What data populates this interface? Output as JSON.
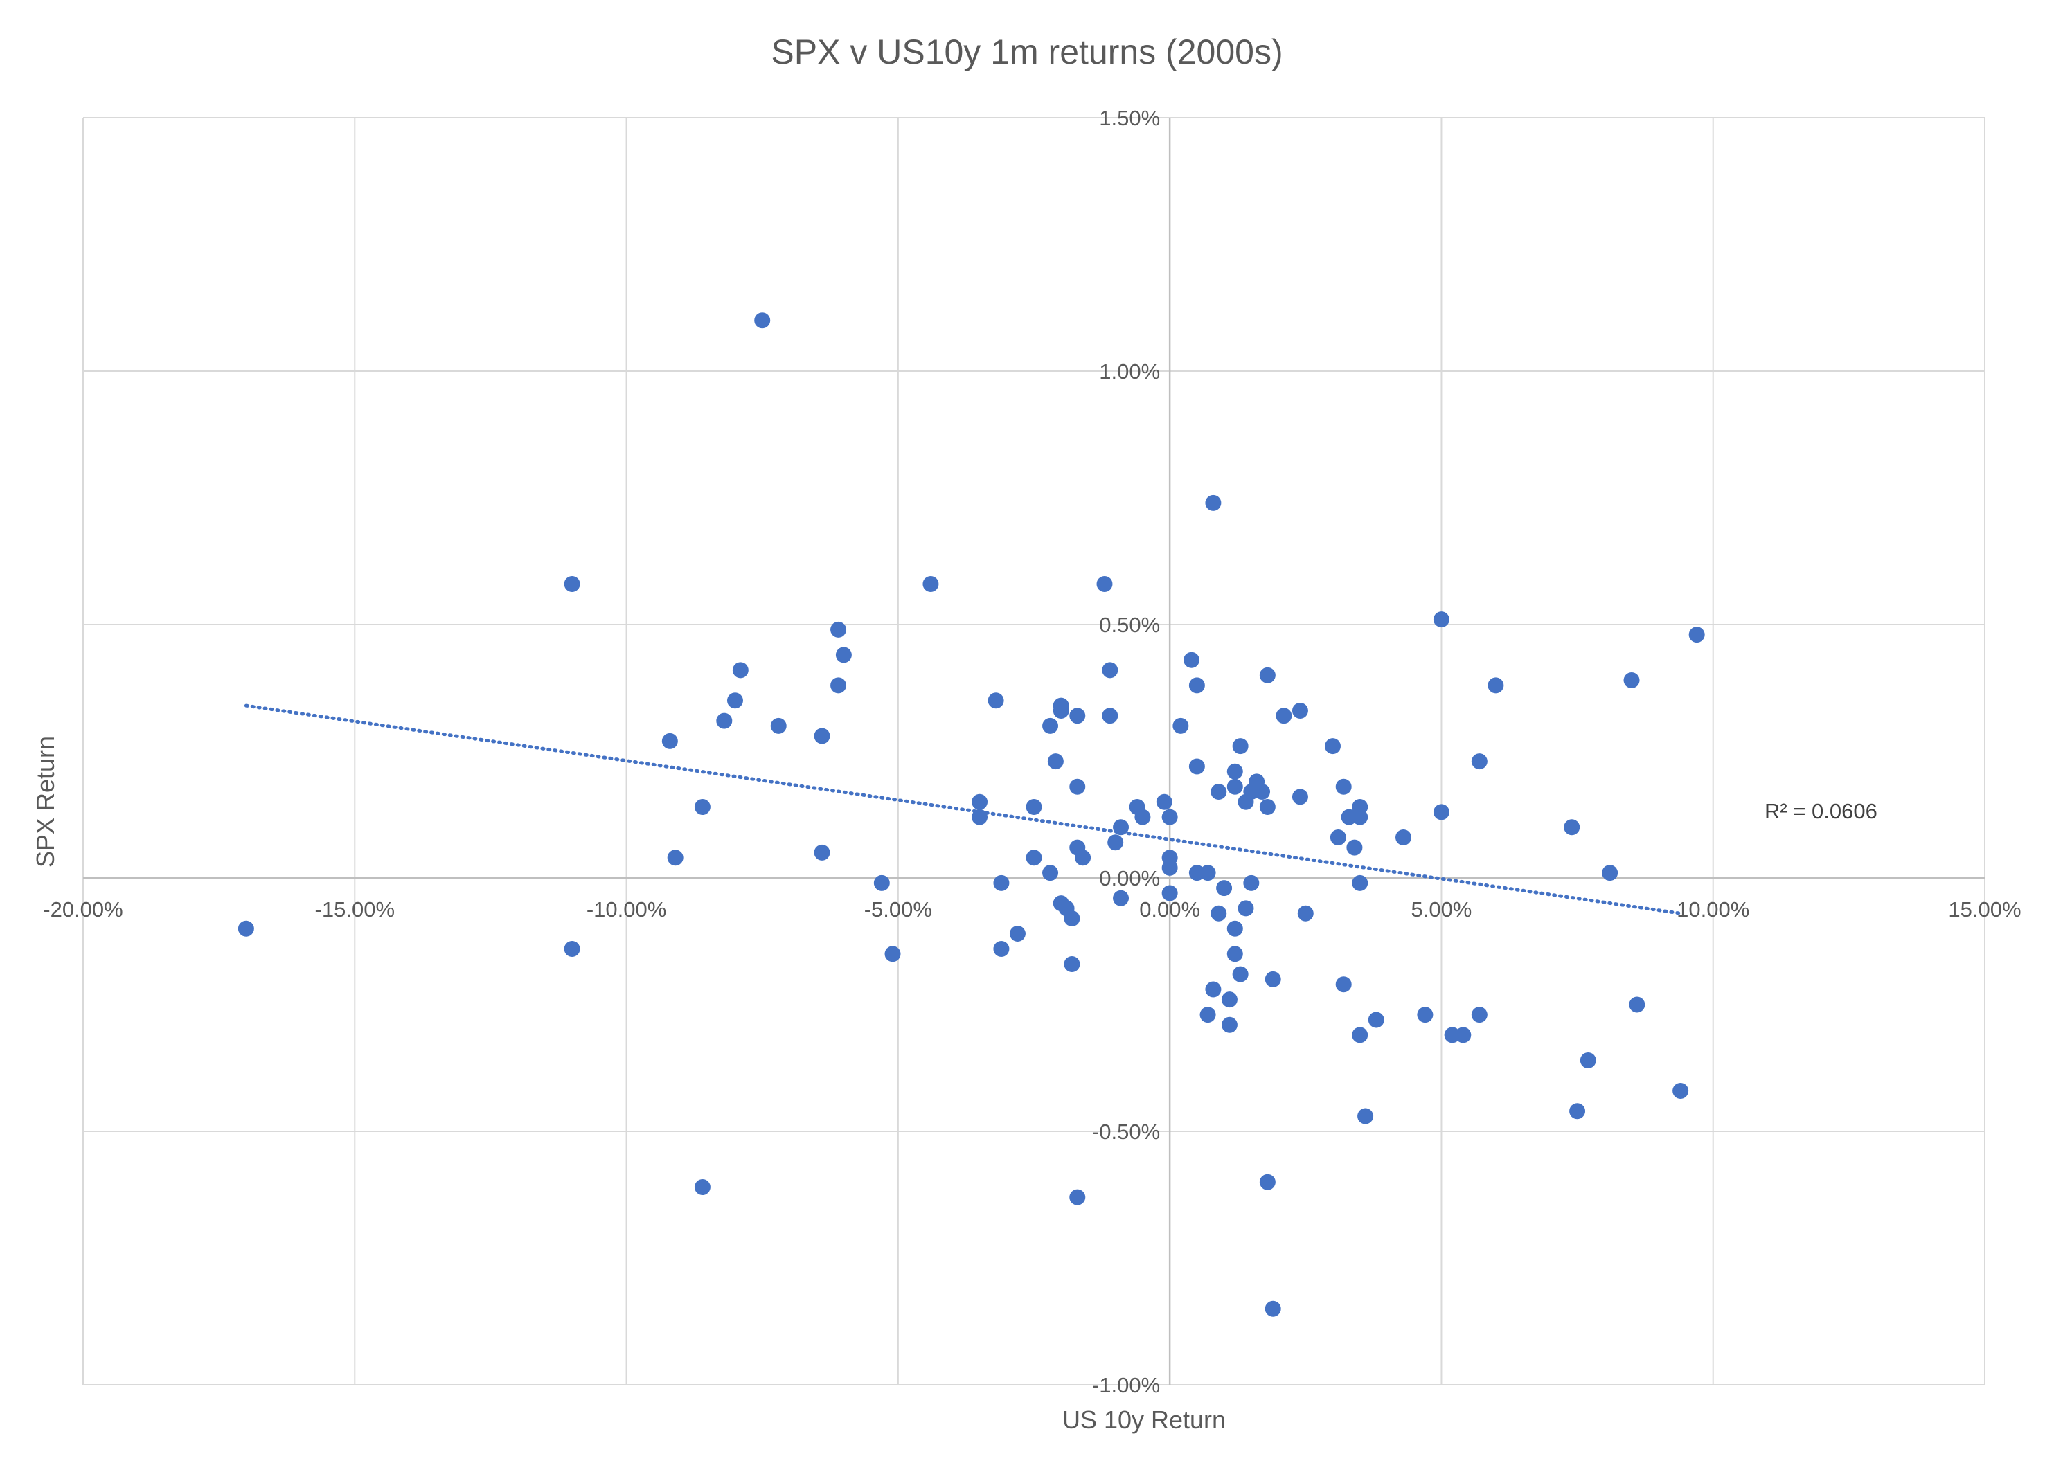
{
  "chart_data": {
    "type": "scatter",
    "title": "SPX v US10y 1m returns (2000s)",
    "xlabel": "US 10y Return",
    "ylabel": "SPX Return",
    "xlim": [
      -20,
      15
    ],
    "ylim": [
      -1.0,
      1.5
    ],
    "x_ticks": [
      -20,
      -15,
      -10,
      -5,
      0,
      5,
      10,
      15
    ],
    "y_ticks": [
      -1.0,
      -0.5,
      0,
      0.5,
      1.0,
      1.5
    ],
    "x_tick_labels": [
      "-20.00%",
      "-15.00%",
      "-10.00%",
      "-5.00%",
      "0.00%",
      "5.00%",
      "10.00%",
      "15.00%"
    ],
    "y_tick_labels": [
      "-1.00%",
      "-0.50%",
      "0.00%",
      "0.50%",
      "1.00%",
      "1.50%"
    ],
    "grid": true,
    "legend": "none",
    "marker_color": "#4472C4",
    "trendline": {
      "type": "linear",
      "style": "dotted",
      "color": "#4472C4",
      "x_range": [
        -17.0,
        9.4
      ],
      "y_range": [
        0.34,
        -0.07
      ],
      "r2_label": "R² = 0.0606"
    },
    "series": [
      {
        "points": [
          [
            -17.0,
            -0.1
          ],
          [
            -11.0,
            0.58
          ],
          [
            -11.0,
            -0.14
          ],
          [
            -9.2,
            0.27
          ],
          [
            -9.1,
            0.04
          ],
          [
            -8.6,
            0.14
          ],
          [
            -8.6,
            -0.61
          ],
          [
            -8.2,
            0.31
          ],
          [
            -8.0,
            0.35
          ],
          [
            -7.9,
            0.41
          ],
          [
            -7.5,
            1.1
          ],
          [
            -7.2,
            0.3
          ],
          [
            -6.4,
            0.28
          ],
          [
            -6.4,
            0.05
          ],
          [
            -6.1,
            0.49
          ],
          [
            -6.1,
            0.38
          ],
          [
            -6.0,
            0.44
          ],
          [
            -5.3,
            -0.01
          ],
          [
            -5.1,
            -0.15
          ],
          [
            -4.4,
            0.58
          ],
          [
            -3.5,
            0.15
          ],
          [
            -3.5,
            0.12
          ],
          [
            -3.2,
            0.35
          ],
          [
            -3.1,
            -0.01
          ],
          [
            -3.1,
            -0.14
          ],
          [
            -2.8,
            -0.11
          ],
          [
            -2.5,
            0.14
          ],
          [
            -2.5,
            0.04
          ],
          [
            -2.2,
            0.3
          ],
          [
            -2.2,
            0.01
          ],
          [
            -2.1,
            0.23
          ],
          [
            -2.0,
            0.34
          ],
          [
            -2.0,
            0.33
          ],
          [
            -2.0,
            -0.05
          ],
          [
            -1.9,
            -0.06
          ],
          [
            -1.8,
            -0.08
          ],
          [
            -1.8,
            -0.17
          ],
          [
            -1.7,
            0.32
          ],
          [
            -1.7,
            0.18
          ],
          [
            -1.7,
            0.06
          ],
          [
            -1.6,
            0.04
          ],
          [
            -1.7,
            -0.63
          ],
          [
            -1.2,
            0.58
          ],
          [
            -1.1,
            0.41
          ],
          [
            -1.1,
            0.32
          ],
          [
            -1.0,
            0.07
          ],
          [
            -0.9,
            0.1
          ],
          [
            -0.9,
            -0.04
          ],
          [
            -0.6,
            0.14
          ],
          [
            -0.5,
            0.12
          ],
          [
            -0.1,
            0.15
          ],
          [
            0.0,
            0.12
          ],
          [
            0.0,
            0.04
          ],
          [
            0.0,
            0.02
          ],
          [
            0.0,
            -0.03
          ],
          [
            0.2,
            0.3
          ],
          [
            0.4,
            0.43
          ],
          [
            0.5,
            0.38
          ],
          [
            0.5,
            0.22
          ],
          [
            0.5,
            0.01
          ],
          [
            0.7,
            0.01
          ],
          [
            0.8,
            0.74
          ],
          [
            0.8,
            -0.22
          ],
          [
            0.7,
            -0.27
          ],
          [
            0.9,
            -0.07
          ],
          [
            0.9,
            0.17
          ],
          [
            1.0,
            -0.02
          ],
          [
            1.1,
            -0.24
          ],
          [
            1.1,
            -0.29
          ],
          [
            1.2,
            -0.1
          ],
          [
            1.2,
            0.21
          ],
          [
            1.2,
            0.18
          ],
          [
            1.2,
            -0.15
          ],
          [
            1.3,
            0.26
          ],
          [
            1.3,
            -0.19
          ],
          [
            1.4,
            0.15
          ],
          [
            1.4,
            -0.06
          ],
          [
            1.5,
            -0.01
          ],
          [
            1.5,
            0.17
          ],
          [
            1.6,
            0.19
          ],
          [
            1.7,
            0.17
          ],
          [
            1.8,
            0.4
          ],
          [
            1.8,
            0.14
          ],
          [
            1.8,
            -0.6
          ],
          [
            1.9,
            -0.2
          ],
          [
            1.9,
            -0.85
          ],
          [
            2.1,
            0.32
          ],
          [
            2.4,
            0.33
          ],
          [
            2.4,
            0.16
          ],
          [
            2.5,
            -0.07
          ],
          [
            3.0,
            0.26
          ],
          [
            3.1,
            0.08
          ],
          [
            3.2,
            0.18
          ],
          [
            3.3,
            0.12
          ],
          [
            3.2,
            -0.21
          ],
          [
            3.4,
            0.06
          ],
          [
            3.5,
            0.12
          ],
          [
            3.5,
            0.14
          ],
          [
            3.5,
            -0.01
          ],
          [
            3.5,
            -0.31
          ],
          [
            3.6,
            -0.47
          ],
          [
            3.8,
            -0.28
          ],
          [
            4.3,
            0.08
          ],
          [
            4.7,
            -0.27
          ],
          [
            5.0,
            0.51
          ],
          [
            5.0,
            0.13
          ],
          [
            5.2,
            -0.31
          ],
          [
            5.4,
            -0.31
          ],
          [
            5.7,
            0.23
          ],
          [
            5.7,
            -0.27
          ],
          [
            6.0,
            0.38
          ],
          [
            7.4,
            0.1
          ],
          [
            7.5,
            -0.46
          ],
          [
            7.7,
            -0.36
          ],
          [
            8.1,
            0.01
          ],
          [
            8.5,
            0.39
          ],
          [
            8.6,
            -0.25
          ],
          [
            9.4,
            -0.42
          ],
          [
            9.7,
            0.48
          ]
        ]
      }
    ]
  }
}
